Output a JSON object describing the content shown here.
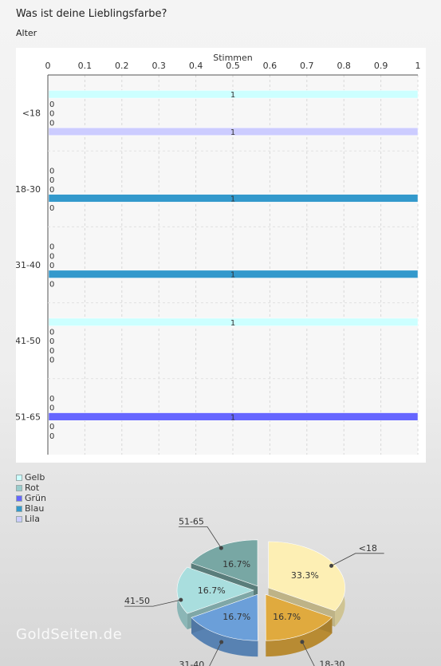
{
  "header": {
    "title": "Was ist deine Lieblingsfarbe?",
    "subtitle": "Alter"
  },
  "colors": {
    "Gelb": "#ccffff",
    "Rot": "#99cccc",
    "Grün": "#6666ff",
    "Blau": "#3399cc",
    "Lila": "#ccccff"
  },
  "chart_data": [
    {
      "type": "bar",
      "orientation": "horizontal",
      "xlabel": "Stimmen",
      "xlim": [
        0,
        1
      ],
      "x_ticks": [
        "0",
        "0.1",
        "0.2",
        "0.3",
        "0.4",
        "0.5",
        "0.6",
        "0.7",
        "0.8",
        "0.9",
        "1"
      ],
      "grid": true,
      "categories": [
        "<18",
        "18-30",
        "31-40",
        "41-50",
        "51-65"
      ],
      "series": [
        {
          "name": "Gelb",
          "values": [
            1,
            0,
            0,
            1,
            0
          ]
        },
        {
          "name": "Rot",
          "values": [
            0,
            0,
            0,
            0,
            0
          ]
        },
        {
          "name": "Grün",
          "values": [
            0,
            0,
            0,
            0,
            1
          ]
        },
        {
          "name": "Blau",
          "values": [
            0,
            1,
            1,
            0,
            0
          ]
        },
        {
          "name": "Lila",
          "values": [
            1,
            0,
            0,
            0,
            0
          ]
        }
      ]
    },
    {
      "type": "pie",
      "style": "3d-exploded",
      "labels": [
        "<18",
        "18-30",
        "31-40",
        "41-50",
        "51-65"
      ],
      "values": [
        33.3,
        16.7,
        16.7,
        16.7,
        16.7
      ],
      "value_labels": [
        "33.3%",
        "16.7%",
        "16.7%",
        "16.7%",
        "16.7%"
      ],
      "colors": [
        "#fdefb4",
        "#e0aa3e",
        "#6b9fd9",
        "#a9dede",
        "#78a7a4"
      ]
    }
  ],
  "legend": [
    {
      "label": "Gelb",
      "color": "#ccffff"
    },
    {
      "label": "Rot",
      "color": "#99cccc"
    },
    {
      "label": "Grün",
      "color": "#6666ff"
    },
    {
      "label": "Blau",
      "color": "#3399cc"
    },
    {
      "label": "Lila",
      "color": "#ccccff"
    }
  ],
  "watermark": "GoldSeiten.de"
}
